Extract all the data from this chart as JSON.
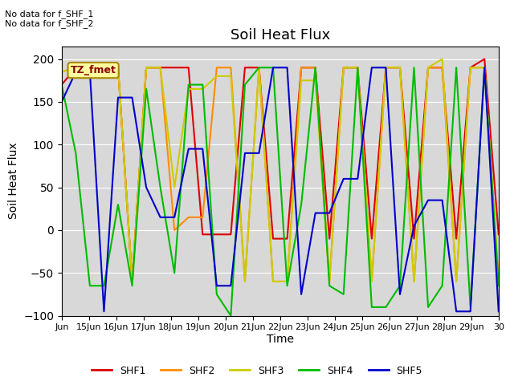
{
  "title": "Soil Heat Flux",
  "ylabel": "Soil Heat Flux",
  "xlabel": "Time",
  "annotations": [
    "No data for f_SHF_1",
    "No data for f_SHF_2"
  ],
  "box_label": "TZ_fmet",
  "ylim": [
    -100,
    215
  ],
  "series_colors": {
    "SHF1": "#dd0000",
    "SHF2": "#ff8c00",
    "SHF3": "#cccc00",
    "SHF4": "#00bb00",
    "SHF5": "#0000cc"
  },
  "x_tick_labels": [
    "Jun",
    "15Jun",
    "16Jun",
    "17Jun",
    "18Jun",
    "19Jun",
    "20Jun",
    "21Jun",
    "22Jun",
    "23Jun",
    "24Jun",
    "25Jun",
    "26Jun",
    "27Jun",
    "28Jun",
    "29Jun",
    "30"
  ],
  "background_color": "#d8d8d8",
  "SHF1": [
    170,
    190,
    190,
    190,
    190,
    -60,
    190,
    190,
    190,
    190,
    -5,
    -5,
    -5,
    190,
    190,
    -10,
    -10,
    190,
    190,
    -10,
    190,
    190,
    -10,
    190,
    190,
    -10,
    190,
    190,
    -10,
    190,
    200,
    -5
  ],
  "SHF2": [
    185,
    190,
    190,
    190,
    190,
    -60,
    190,
    190,
    0,
    15,
    15,
    190,
    190,
    -60,
    190,
    -60,
    -60,
    190,
    190,
    -60,
    190,
    190,
    -60,
    190,
    190,
    -60,
    190,
    190,
    -60,
    190,
    190,
    -60
  ],
  "SHF3": [
    185,
    190,
    190,
    190,
    190,
    -60,
    190,
    190,
    50,
    165,
    165,
    180,
    180,
    -60,
    190,
    -60,
    -60,
    175,
    175,
    -60,
    190,
    190,
    -60,
    190,
    190,
    -60,
    190,
    200,
    -60,
    190,
    190,
    -60
  ],
  "SHF4": [
    170,
    90,
    -65,
    -65,
    30,
    -65,
    165,
    50,
    -50,
    170,
    170,
    -75,
    -100,
    170,
    190,
    190,
    -65,
    30,
    190,
    -65,
    -75,
    190,
    -90,
    -90,
    -65,
    190,
    -90,
    -65,
    190,
    -90,
    190,
    -65
  ],
  "SHF5": [
    150,
    185,
    185,
    -95,
    155,
    155,
    50,
    15,
    15,
    95,
    95,
    -65,
    -65,
    90,
    90,
    190,
    190,
    -75,
    20,
    20,
    60,
    60,
    190,
    190,
    -75,
    5,
    35,
    35,
    -95,
    -95,
    190,
    -95
  ],
  "n_points": 32,
  "x_start": 14,
  "x_end": 30,
  "xlim": [
    14,
    30
  ]
}
